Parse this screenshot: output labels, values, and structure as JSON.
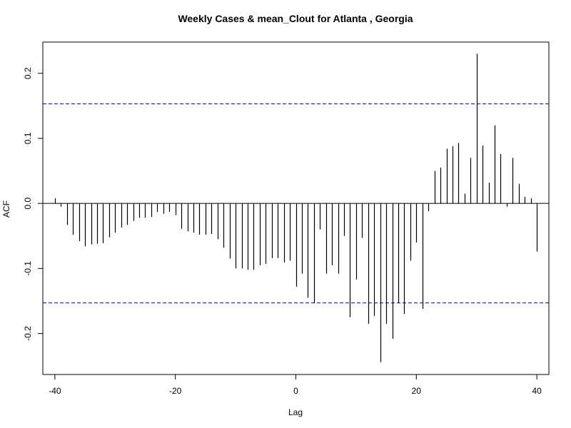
{
  "chart_data": {
    "type": "bar",
    "title": "Weekly Cases & mean_Clout for Atlanta , Georgia",
    "xlabel": "Lag",
    "ylabel": "ACF",
    "xlim": [
      -42,
      42
    ],
    "ylim": [
      -0.263,
      0.248
    ],
    "x_ticks": [
      -40,
      -20,
      0,
      20,
      40
    ],
    "x_tick_labels": [
      "-40",
      "-20",
      "0",
      "20",
      "40"
    ],
    "y_ticks": [
      -0.2,
      -0.1,
      0.0,
      0.1,
      0.2
    ],
    "y_tick_labels": [
      "-0.2",
      "-0.1",
      "0.0",
      "0.1",
      "0.2"
    ],
    "confidence_bound": 0.153,
    "confidence_color": "#0000cc",
    "bar_color": "#000000",
    "x": [
      -40,
      -39,
      -38,
      -37,
      -36,
      -35,
      -34,
      -33,
      -32,
      -31,
      -30,
      -29,
      -28,
      -27,
      -26,
      -25,
      -24,
      -23,
      -22,
      -21,
      -20,
      -19,
      -18,
      -17,
      -16,
      -15,
      -14,
      -13,
      -12,
      -11,
      -10,
      -9,
      -8,
      -7,
      -6,
      -5,
      -4,
      -3,
      -2,
      -1,
      0,
      1,
      2,
      3,
      4,
      5,
      6,
      7,
      8,
      9,
      10,
      11,
      12,
      13,
      14,
      15,
      16,
      17,
      18,
      19,
      20,
      21,
      22,
      23,
      24,
      25,
      26,
      27,
      28,
      29,
      30,
      31,
      32,
      33,
      34,
      35,
      36,
      37,
      38,
      39,
      40
    ],
    "values": [
      0.008,
      -0.005,
      -0.033,
      -0.048,
      -0.058,
      -0.066,
      -0.063,
      -0.062,
      -0.061,
      -0.052,
      -0.045,
      -0.037,
      -0.033,
      -0.027,
      -0.022,
      -0.022,
      -0.021,
      -0.013,
      -0.016,
      -0.013,
      -0.018,
      -0.039,
      -0.043,
      -0.045,
      -0.048,
      -0.048,
      -0.047,
      -0.055,
      -0.068,
      -0.085,
      -0.1,
      -0.1,
      -0.102,
      -0.102,
      -0.095,
      -0.093,
      -0.084,
      -0.084,
      -0.091,
      -0.088,
      -0.128,
      -0.108,
      -0.145,
      -0.153,
      -0.04,
      -0.108,
      -0.095,
      -0.108,
      -0.05,
      -0.175,
      -0.117,
      -0.053,
      -0.185,
      -0.173,
      -0.244,
      -0.185,
      -0.208,
      -0.153,
      -0.17,
      -0.088,
      -0.06,
      -0.162,
      -0.012,
      0.05,
      0.055,
      0.084,
      0.088,
      0.093,
      0.015,
      0.07,
      0.23,
      0.089,
      0.032,
      0.12,
      0.076,
      -0.005,
      0.07,
      0.03,
      0.01,
      0.008,
      -0.074
    ]
  }
}
